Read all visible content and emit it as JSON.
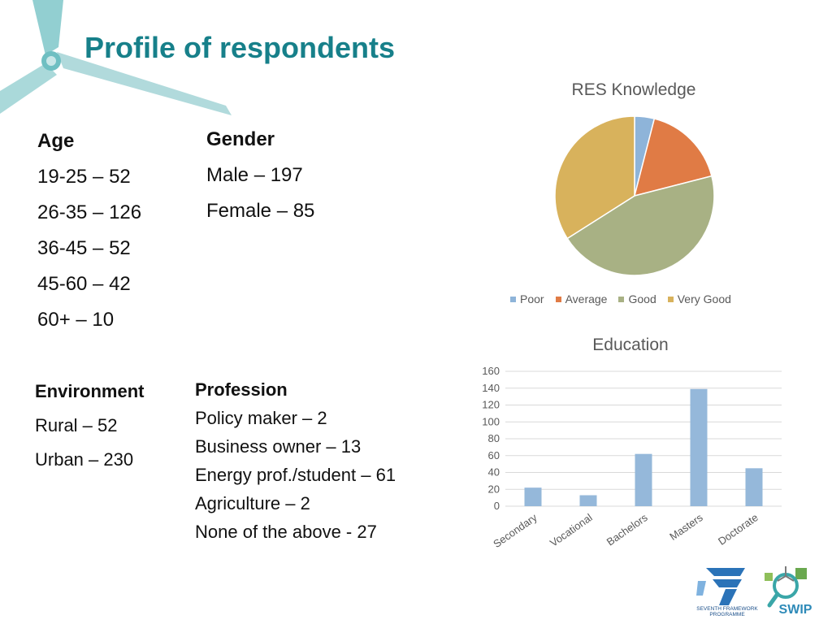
{
  "page": {
    "title": "Profile of respondents"
  },
  "age": {
    "heading": "Age",
    "items": [
      "19-25 – 52",
      "26-35 – 126",
      "36-45 – 52",
      "45-60 – 42",
      "60+ – 10"
    ]
  },
  "gender": {
    "heading": "Gender",
    "items": [
      "Male – 197",
      "Female – 85"
    ]
  },
  "environment": {
    "heading": "Environment",
    "items": [
      "Rural – 52",
      "Urban – 230"
    ]
  },
  "profession": {
    "heading": "Profession",
    "items": [
      "Policy maker – 2",
      "Business owner – 13",
      "Energy prof./student – 61",
      "Agriculture – 2",
      "None of the above - 27"
    ]
  },
  "logos": {
    "fp7_text": [
      "SEVENTH FRAMEWORK",
      "PROGRAMME"
    ],
    "swip_text": "SWIP"
  },
  "chart_data": [
    {
      "type": "pie",
      "title": "RES Knowledge",
      "categories": [
        "Poor",
        "Average",
        "Good",
        "Very Good"
      ],
      "values": [
        4,
        17,
        45,
        34
      ],
      "colors": [
        "#8eb4d9",
        "#e07b45",
        "#a8b184",
        "#d8b25c"
      ],
      "legend": "bottom"
    },
    {
      "type": "bar",
      "title": "Education",
      "categories": [
        "Secondary",
        "Vocational",
        "Bachelors",
        "Masters",
        "Doctorate"
      ],
      "values": [
        22,
        13,
        62,
        139,
        45
      ],
      "ylim": [
        0,
        160
      ],
      "yticks": [
        0,
        20,
        40,
        60,
        80,
        100,
        120,
        140,
        160
      ],
      "color": "#95b8da",
      "grid": true,
      "xlabel": "",
      "ylabel": ""
    }
  ]
}
